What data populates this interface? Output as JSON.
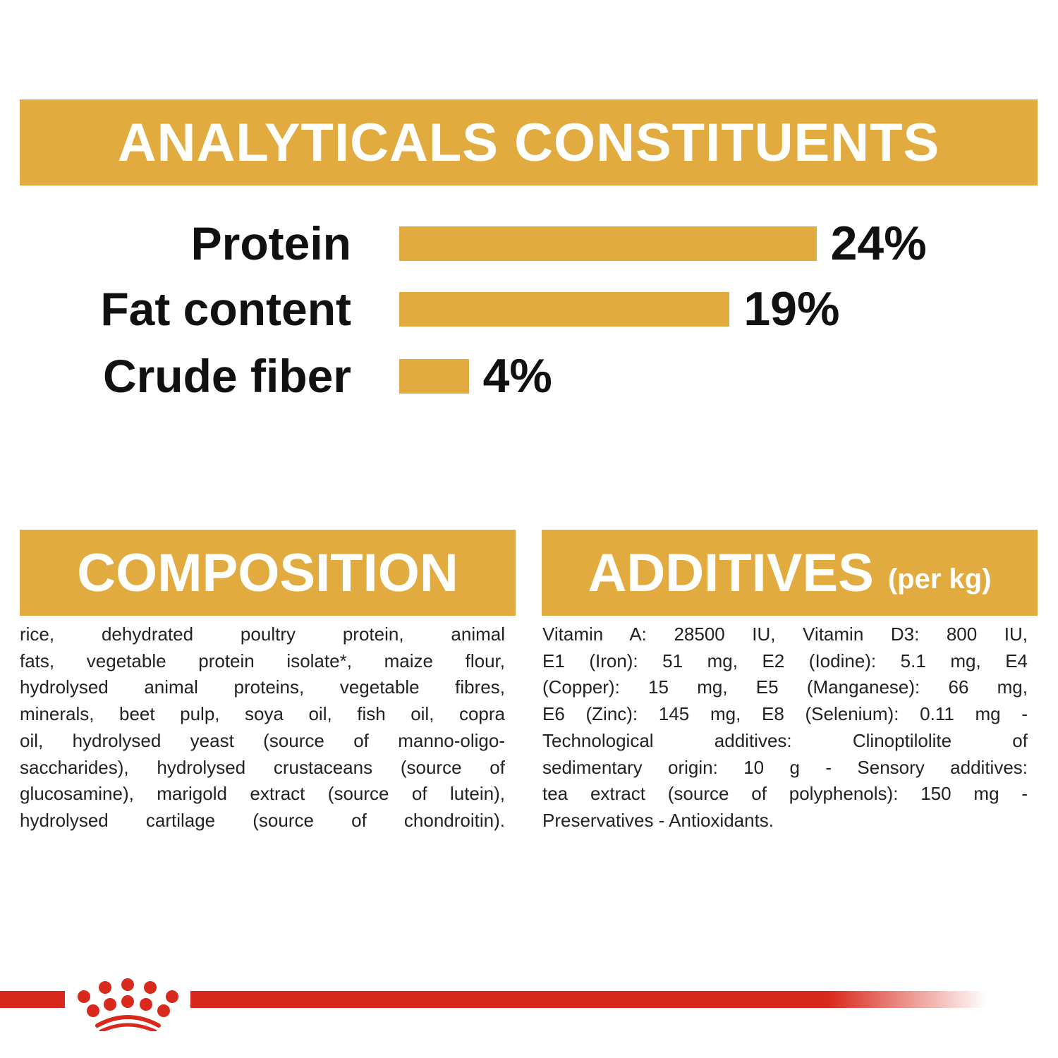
{
  "analytics": {
    "title": "ANALYTICALS CONSTITUENTS",
    "rows": [
      {
        "label": "Protein",
        "value": 24,
        "value_label": "24%"
      },
      {
        "label": "Fat content",
        "value": 19,
        "value_label": "19%"
      },
      {
        "label": "Crude fiber",
        "value": 4,
        "value_label": "4%"
      }
    ]
  },
  "composition": {
    "title": "COMPOSITION",
    "lines": [
      "rice, dehydrated poultry protein, animal",
      "fats, vegetable protein isolate*, maize flour,",
      "hydrolysed animal proteins, vegetable fibres,",
      "minerals, beet pulp, soya oil, fish oil, copra",
      "oil, hydrolysed yeast (source of manno-oligo-",
      "saccharides), hydrolysed crustaceans (source of",
      "glucosamine), marigold extract (source of lutein),",
      "hydrolysed cartilage (source of chondroitin)."
    ]
  },
  "additives": {
    "title": "ADDITIVES",
    "subtitle": "(per kg)",
    "lines": [
      "Vitamin A: 28500 IU, Vitamin D3: 800 IU,",
      "E1 (Iron): 51 mg, E2 (Iodine): 5.1 mg, E4",
      "(Copper): 15 mg, E5 (Manganese): 66 mg,",
      "E6 (Zinc): 145 mg, E8 (Selenium): 0.11 mg -",
      "Technological additives: Clinoptilolite of",
      "sedimentary origin: 10 g - Sensory additives:",
      "tea extract (source of polyphenols): 150 mg -",
      "Preservatives - Antioxidants."
    ]
  },
  "colors": {
    "accent": "#e1ab3f",
    "brand_red": "#d9291c"
  }
}
